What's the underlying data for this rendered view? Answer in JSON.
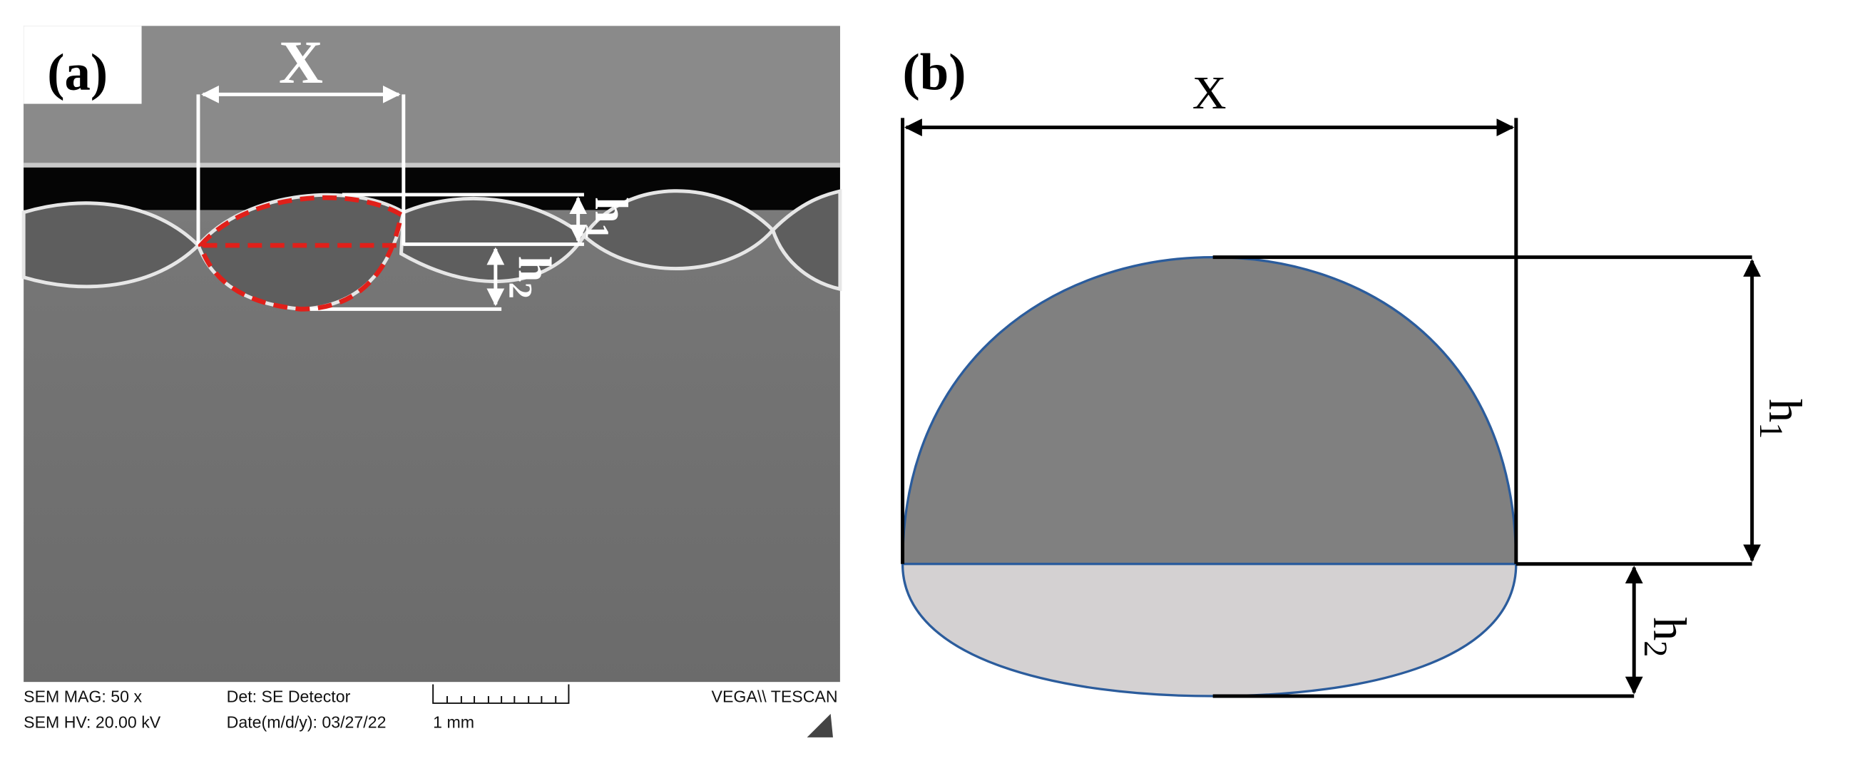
{
  "panel_a": {
    "label": "(a)",
    "x_label": "X",
    "h1": {
      "base": "h",
      "sub": "1"
    },
    "h2": {
      "base": "h",
      "sub": "2"
    },
    "info": {
      "mag": "SEM MAG: 50 x",
      "hv": "SEM HV: 20.00 kV",
      "detector": "Det: SE Detector",
      "date": "Date(m/d/y): 03/27/22",
      "scale": "1 mm",
      "brand": "VEGA\\\\ TESCAN"
    }
  },
  "panel_b": {
    "label": "(b)",
    "x_label": "X",
    "h1": {
      "base": "h",
      "sub": "1"
    },
    "h2": {
      "base": "h",
      "sub": "2"
    }
  }
}
